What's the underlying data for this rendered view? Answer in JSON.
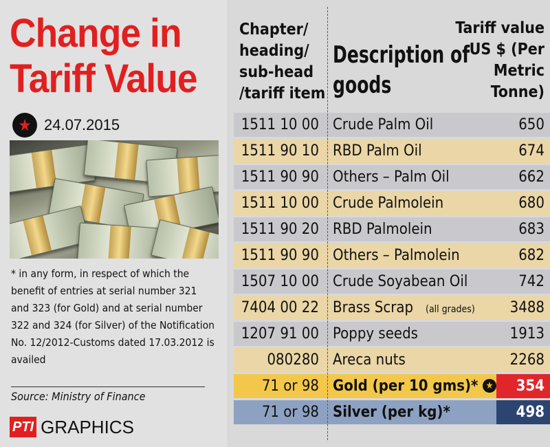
{
  "title": "Change in Tariff Value",
  "date": "24.07.2015",
  "footnote": "* in any form, in respect of which the benefit of entries at serial number 321 and 323 (for Gold) and at serial number 322 and 324 (for Silver) of the Notification No. 12/2012-Customs dated 17.03.2012 is availed",
  "source": "Source: Ministry of Finance",
  "credit": {
    "logo": "PTI",
    "text": "GRAPHICS"
  },
  "table": {
    "headers": {
      "code": "Chapter/ heading/ sub-head /tariff item",
      "description": "Description of goods",
      "value": "Tariff value US $ (Per Metric Tonne)"
    },
    "rows": [
      {
        "code": "1511 10 00",
        "description": "Crude Palm Oil",
        "note": "",
        "value": "650",
        "bg": "#c9c9cd"
      },
      {
        "code": "1511 90 10",
        "description": "RBD Palm Oil",
        "note": "",
        "value": "674",
        "bg": "#ead6a6"
      },
      {
        "code": "1511 90 90",
        "description": "Others – Palm Oil",
        "note": "",
        "value": "662",
        "bg": "#c9c9cd"
      },
      {
        "code": "1511 10 00",
        "description": "Crude Palmolein",
        "note": "",
        "value": "680",
        "bg": "#ead6a6"
      },
      {
        "code": "1511 90 20",
        "description": "RBD Palmolein",
        "note": "",
        "value": "683",
        "bg": "#c9c9cd"
      },
      {
        "code": "1511 90 90",
        "description": "Others – Palmolein",
        "note": "",
        "value": "682",
        "bg": "#ead6a6"
      },
      {
        "code": "1507 10 00",
        "description": "Crude Soyabean Oil",
        "note": "",
        "value": "742",
        "bg": "#c9c9cd"
      },
      {
        "code": "7404 00 22",
        "description": "Brass Scrap",
        "note": "(all grades)",
        "value": "3488",
        "bg": "#ead6a6"
      },
      {
        "code": "1207 91 00",
        "description": "Poppy seeds",
        "note": "",
        "value": "1913",
        "bg": "#c9c9cd"
      },
      {
        "code": "080280",
        "description": "Areca nuts",
        "note": "",
        "value": "2268",
        "bg": "#ead6a6"
      },
      {
        "code": "71 or 98",
        "description": "Gold (per 10 gms)*",
        "note": "",
        "value": "354",
        "bg": "#f3c84a",
        "value_bg": "#e0262b",
        "star": true
      },
      {
        "code": "71 or 98",
        "description": "Silver (per kg)*",
        "note": "",
        "value": "498",
        "bg": "#8da2c2",
        "value_bg": "#2c4470",
        "star": false
      }
    ]
  },
  "colors": {
    "title": "#e02020",
    "grey_row": "#c9c9cd",
    "tan_row": "#ead6a6",
    "gold_row": "#f3c84a",
    "silver_row": "#8da2c2"
  }
}
